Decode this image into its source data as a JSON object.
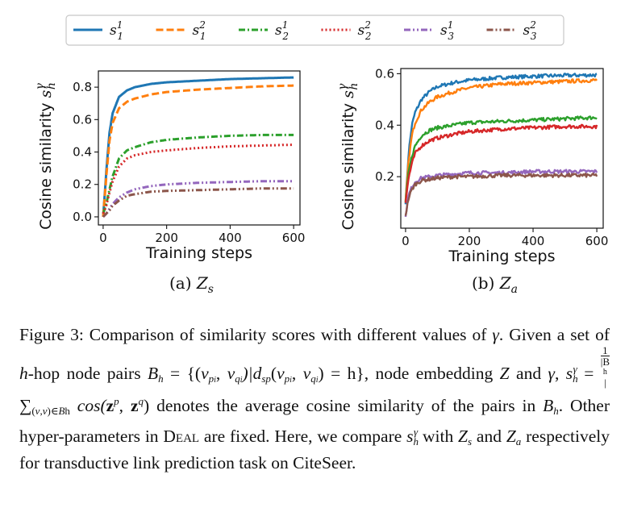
{
  "colors": {
    "s_h1": "#1f77b4",
    "s_h1_2": "#ff7f0e",
    "s_h2_1": "#2ca02c",
    "s_h2_2": "#d62728",
    "s_h3_1": "#9467bd",
    "s_h3_2": "#8c564b"
  },
  "legend": [
    {
      "base": "s",
      "sub": "1",
      "sup": "1",
      "color": "#1f77b4",
      "dash": ""
    },
    {
      "base": "s",
      "sub": "1",
      "sup": "2",
      "color": "#ff7f0e",
      "dash": "9,4"
    },
    {
      "base": "s",
      "sub": "2",
      "sup": "1",
      "color": "#2ca02c",
      "dash": "8,3,2,3"
    },
    {
      "base": "s",
      "sub": "2",
      "sup": "2",
      "color": "#d62728",
      "dash": "2,3"
    },
    {
      "base": "s",
      "sub": "3",
      "sup": "1",
      "color": "#9467bd",
      "dash": "8,3,2,3,2,3"
    },
    {
      "base": "s",
      "sub": "3",
      "sup": "2",
      "color": "#8c564b",
      "dash": "8,3,2,3,2,3"
    }
  ],
  "chart_data": [
    {
      "type": "line",
      "panel_label": "(a)",
      "panel_var": "Z",
      "panel_sub": "s",
      "xlabel": "Training steps",
      "ylabel": "Cosine similarity",
      "ylabel_sym": "s",
      "ylabel_sub": "h",
      "ylabel_sup": "γ",
      "xlim": [
        -15,
        620
      ],
      "ylim": [
        -0.05,
        0.9
      ],
      "xticks": [
        0,
        200,
        400,
        600
      ],
      "yticks": [
        0.0,
        0.2,
        0.4,
        0.6,
        0.8
      ],
      "ytick_labels": [
        "0.0",
        "0.2",
        "0.4",
        "0.6",
        "0.8"
      ],
      "noisy": false,
      "series": [
        {
          "name": "s_1^1",
          "x": [
            0,
            10,
            20,
            30,
            50,
            75,
            100,
            150,
            200,
            300,
            400,
            500,
            600
          ],
          "values": [
            0.0,
            0.28,
            0.52,
            0.64,
            0.74,
            0.78,
            0.8,
            0.82,
            0.83,
            0.84,
            0.85,
            0.855,
            0.86
          ]
        },
        {
          "name": "s_1^2",
          "x": [
            0,
            10,
            20,
            30,
            50,
            75,
            100,
            150,
            200,
            300,
            400,
            500,
            600
          ],
          "values": [
            0.0,
            0.25,
            0.47,
            0.58,
            0.67,
            0.71,
            0.73,
            0.755,
            0.77,
            0.785,
            0.795,
            0.805,
            0.81
          ]
        },
        {
          "name": "s_2^1",
          "x": [
            0,
            10,
            20,
            30,
            50,
            75,
            100,
            150,
            200,
            300,
            400,
            500,
            600
          ],
          "values": [
            0.02,
            0.08,
            0.17,
            0.25,
            0.36,
            0.41,
            0.43,
            0.46,
            0.475,
            0.49,
            0.5,
            0.505,
            0.505
          ]
        },
        {
          "name": "s_2^2",
          "x": [
            0,
            10,
            20,
            30,
            50,
            75,
            100,
            150,
            200,
            300,
            400,
            500,
            600
          ],
          "values": [
            0.02,
            0.07,
            0.15,
            0.22,
            0.31,
            0.36,
            0.38,
            0.4,
            0.41,
            0.425,
            0.435,
            0.44,
            0.445
          ]
        },
        {
          "name": "s_3^1",
          "x": [
            0,
            10,
            20,
            30,
            50,
            75,
            100,
            150,
            200,
            300,
            400,
            500,
            600
          ],
          "values": [
            0.0,
            0.02,
            0.05,
            0.08,
            0.12,
            0.15,
            0.17,
            0.19,
            0.2,
            0.21,
            0.215,
            0.22,
            0.22
          ]
        },
        {
          "name": "s_3^2",
          "x": [
            0,
            10,
            20,
            30,
            50,
            75,
            100,
            150,
            200,
            300,
            400,
            500,
            600
          ],
          "values": [
            0.0,
            0.02,
            0.04,
            0.07,
            0.1,
            0.13,
            0.14,
            0.155,
            0.16,
            0.165,
            0.17,
            0.175,
            0.175
          ]
        }
      ]
    },
    {
      "type": "line",
      "panel_label": "(b)",
      "panel_var": "Z",
      "panel_sub": "a",
      "xlabel": "Training steps",
      "ylabel": "Cosine similarity",
      "ylabel_sym": "s",
      "ylabel_sub": "h",
      "ylabel_sup": "γ",
      "xlim": [
        -15,
        620
      ],
      "ylim": [
        0.0,
        0.62
      ],
      "xticks": [
        0,
        200,
        400,
        600
      ],
      "yticks": [
        0.2,
        0.4,
        0.6
      ],
      "ytick_labels": [
        "0.2",
        "0.4",
        "0.6"
      ],
      "noisy": true,
      "series": [
        {
          "name": "s_1^1",
          "x": [
            0,
            10,
            20,
            30,
            50,
            75,
            100,
            150,
            200,
            300,
            400,
            500,
            600
          ],
          "values": [
            0.1,
            0.3,
            0.4,
            0.45,
            0.5,
            0.53,
            0.55,
            0.565,
            0.575,
            0.585,
            0.59,
            0.593,
            0.595
          ]
        },
        {
          "name": "s_1^2",
          "x": [
            0,
            10,
            20,
            30,
            50,
            75,
            100,
            150,
            200,
            300,
            400,
            500,
            600
          ],
          "values": [
            0.1,
            0.27,
            0.36,
            0.41,
            0.46,
            0.49,
            0.51,
            0.53,
            0.545,
            0.56,
            0.565,
            0.57,
            0.575
          ]
        },
        {
          "name": "s_2^1",
          "x": [
            0,
            10,
            20,
            30,
            50,
            75,
            100,
            150,
            200,
            300,
            400,
            500,
            600
          ],
          "values": [
            0.1,
            0.22,
            0.28,
            0.32,
            0.36,
            0.38,
            0.39,
            0.4,
            0.41,
            0.415,
            0.42,
            0.425,
            0.43
          ]
        },
        {
          "name": "s_2^2",
          "x": [
            0,
            10,
            20,
            30,
            50,
            75,
            100,
            150,
            200,
            300,
            400,
            500,
            600
          ],
          "values": [
            0.1,
            0.2,
            0.25,
            0.29,
            0.32,
            0.34,
            0.35,
            0.365,
            0.375,
            0.385,
            0.39,
            0.395,
            0.395
          ]
        },
        {
          "name": "s_3^1",
          "x": [
            0,
            10,
            20,
            30,
            50,
            75,
            100,
            150,
            200,
            300,
            400,
            500,
            600
          ],
          "values": [
            0.05,
            0.13,
            0.16,
            0.18,
            0.195,
            0.2,
            0.205,
            0.21,
            0.215,
            0.215,
            0.22,
            0.22,
            0.22
          ]
        },
        {
          "name": "s_3^2",
          "x": [
            0,
            10,
            20,
            30,
            50,
            75,
            100,
            150,
            200,
            300,
            400,
            500,
            600
          ],
          "values": [
            0.05,
            0.12,
            0.15,
            0.17,
            0.185,
            0.19,
            0.195,
            0.2,
            0.2,
            0.205,
            0.205,
            0.205,
            0.205
          ]
        }
      ]
    }
  ],
  "caption": {
    "label": "Figure 3:",
    "t1": " Comparison of similarity scores with different values of ",
    "gamma": "γ",
    "t2": ". Given a set of ",
    "h": "h",
    "t3": "-hop node pairs ",
    "set_expr_a": "B",
    "set_expr_b": " = {(",
    "v": "v",
    "t_comma": ", ",
    "t_dsp": ")|d",
    "dsp_sub": "sp",
    "t_eqh": ") = h}, node embedding ",
    "Z": "Z",
    "t4": " and ",
    "t5": ", ",
    "frac_num": "1",
    "frac_den": "|B",
    "sum": "∑",
    "cos": " cos(",
    "bold_z": "z",
    "p_sup": "p",
    "q_sup": "q",
    "t6": ") denotes the average cosine similarity of the pairs in ",
    "t7": ". Other hyper-parameters in ",
    "deal": "Deal",
    "t8": " are fixed. Here, we compare ",
    "t9": " with ",
    "t10": " and ",
    "t11": " respectively for transductive link prediction task on CiteSeer."
  }
}
